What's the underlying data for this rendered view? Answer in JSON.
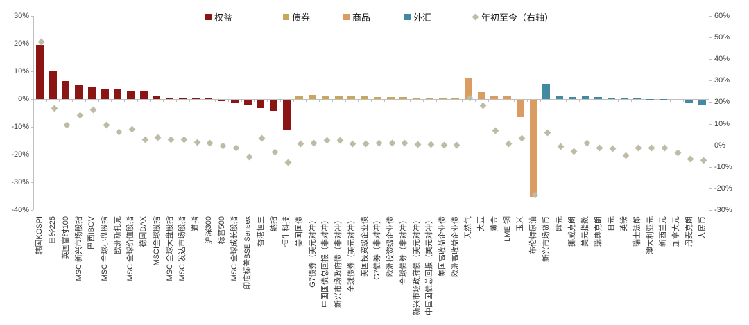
{
  "chart_data": {
    "type": "bar",
    "overlay": "scatter",
    "title": "",
    "legend": [
      {
        "label": "权益",
        "color": "#8B1512",
        "marker": "square"
      },
      {
        "label": "债券",
        "color": "#C8A75C",
        "marker": "square"
      },
      {
        "label": "商品",
        "color": "#DB9C62",
        "marker": "square"
      },
      {
        "label": "外汇",
        "color": "#4489A3",
        "marker": "square"
      },
      {
        "label": "年初至今（右轴）",
        "color": "#BFBCA5",
        "marker": "diamond"
      }
    ],
    "left_axis": {
      "max": 30,
      "min": -40,
      "step": 10,
      "ticks": [
        "30%",
        "20%",
        "10%",
        "0%",
        "-10%",
        "-20%",
        "-30%",
        "-40%"
      ]
    },
    "right_axis": {
      "max": 60,
      "min": -30,
      "step": 10,
      "ticks": [
        "60%",
        "50%",
        "40%",
        "30%",
        "20%",
        "10%",
        "0%",
        "-10%",
        "-20%",
        "-30%"
      ]
    },
    "series_note": "bar = period performance (left axis), diamond = 年初至今 YTD (right axis)",
    "points": [
      {
        "label": "韩国KOSPI",
        "group": "权益",
        "bar": 19.5,
        "ytd": 48.0
      },
      {
        "label": "日经225",
        "group": "权益",
        "bar": 10.2,
        "ytd": 17.0
      },
      {
        "label": "英国富时100",
        "group": "权益",
        "bar": 6.6,
        "ytd": 9.5
      },
      {
        "label": "MSCI新兴市场股指",
        "group": "权益",
        "bar": 5.2,
        "ytd": 14.0
      },
      {
        "label": "巴西IBOV",
        "group": "权益",
        "bar": 4.2,
        "ytd": 16.5
      },
      {
        "label": "MSCI全球小盘股指",
        "group": "权益",
        "bar": 3.7,
        "ytd": 9.5
      },
      {
        "label": "欧洲斯托克",
        "group": "权益",
        "bar": 3.6,
        "ytd": 6.2
      },
      {
        "label": "MSCI全球价值股指",
        "group": "权益",
        "bar": 3.1,
        "ytd": 7.6
      },
      {
        "label": "德国DAX",
        "group": "权益",
        "bar": 2.8,
        "ytd": 2.7
      },
      {
        "label": "MSCI全球股指",
        "group": "权益",
        "bar": 1.0,
        "ytd": 3.6
      },
      {
        "label": "MSCI全球大盘股指",
        "group": "权益",
        "bar": 0.6,
        "ytd": 2.7
      },
      {
        "label": "MSCI发达市场股指",
        "group": "权益",
        "bar": 0.5,
        "ytd": 2.5
      },
      {
        "label": "道指",
        "group": "权益",
        "bar": 0.4,
        "ytd": 1.5
      },
      {
        "label": "沪深300",
        "group": "权益",
        "bar": 0.2,
        "ytd": 1.0
      },
      {
        "label": "标普500",
        "group": "权益",
        "bar": -0.5,
        "ytd": -0.1
      },
      {
        "label": "MSCI全球成长股指",
        "group": "权益",
        "bar": -1.0,
        "ytd": -1.2
      },
      {
        "label": "印度标普BSE Sensex",
        "group": "权益",
        "bar": -1.9,
        "ytd": -5.5
      },
      {
        "label": "香港恒生",
        "group": "权益",
        "bar": -3.1,
        "ytd": 3.3
      },
      {
        "label": "纳指",
        "group": "权益",
        "bar": -4.1,
        "ytd": -3.3
      },
      {
        "label": "恒生科技",
        "group": "权益",
        "bar": -10.8,
        "ytd": -8.0
      },
      {
        "label": "美国国债",
        "group": "债券",
        "bar": 1.2,
        "ytd": 0.8
      },
      {
        "label": "G7债券（美元对冲）",
        "group": "债券",
        "bar": 1.4,
        "ytd": 1.0
      },
      {
        "label": "中国国债总回报（非对冲）",
        "group": "债券",
        "bar": 1.2,
        "ytd": 2.2
      },
      {
        "label": "新兴市场政府债（非对冲）",
        "group": "债券",
        "bar": 1.0,
        "ytd": 2.3
      },
      {
        "label": "全球债券（美元对冲）",
        "group": "债券",
        "bar": 1.2,
        "ytd": 0.8
      },
      {
        "label": "美国投资级企业债",
        "group": "债券",
        "bar": 1.0,
        "ytd": 0.8
      },
      {
        "label": "G7债券（非对冲）",
        "group": "债券",
        "bar": 0.7,
        "ytd": 0.9
      },
      {
        "label": "欧洲投资级企业债",
        "group": "债券",
        "bar": 0.8,
        "ytd": 1.0
      },
      {
        "label": "全球债券（非对冲）",
        "group": "债券",
        "bar": 0.7,
        "ytd": 1.1
      },
      {
        "label": "新兴市场政府债（美元对冲）",
        "group": "债券",
        "bar": 0.4,
        "ytd": 0.3
      },
      {
        "label": "中国国债总回报（美元对冲）",
        "group": "债券",
        "bar": 0.25,
        "ytd": 0.3
      },
      {
        "label": "美国高收益企业债",
        "group": "债券",
        "bar": 0.15,
        "ytd": 0.2
      },
      {
        "label": "欧洲高收益企业债",
        "group": "债券",
        "bar": 0.15,
        "ytd": 0.2
      },
      {
        "label": "天然气",
        "group": "商品",
        "bar": 7.6,
        "ytd": 22.0
      },
      {
        "label": "大豆",
        "group": "商品",
        "bar": 2.4,
        "ytd": 18.5
      },
      {
        "label": "黄金",
        "group": "商品",
        "bar": 1.2,
        "ytd": 6.8
      },
      {
        "label": "LME 铜",
        "group": "商品",
        "bar": 1.3,
        "ytd": 0.8
      },
      {
        "label": "玉米",
        "group": "商品",
        "bar": -6.3,
        "ytd": 3.3
      },
      {
        "label": "布伦特原油",
        "group": "商品",
        "bar": -34.9,
        "ytd": -23.2
      },
      {
        "label": "新兴市场货币",
        "group": "外汇",
        "bar": 5.5,
        "ytd": 6.0
      },
      {
        "label": "欧元",
        "group": "外汇",
        "bar": 1.3,
        "ytd": -0.5
      },
      {
        "label": "挪威克朗",
        "group": "外汇",
        "bar": 0.8,
        "ytd": -2.7
      },
      {
        "label": "美元指数",
        "group": "外汇",
        "bar": 1.2,
        "ytd": 1.1
      },
      {
        "label": "瑞典克朗",
        "group": "外汇",
        "bar": 0.8,
        "ytd": -1.1
      },
      {
        "label": "日元",
        "group": "外汇",
        "bar": 0.5,
        "ytd": -1.4
      },
      {
        "label": "英镑",
        "group": "外汇",
        "bar": 0.2,
        "ytd": -4.9
      },
      {
        "label": "瑞士法郎",
        "group": "外汇",
        "bar": 0.2,
        "ytd": -1.1
      },
      {
        "label": "澳大利亚元",
        "group": "外汇",
        "bar": 0.1,
        "ytd": -1.1
      },
      {
        "label": "新西兰元",
        "group": "外汇",
        "bar": 0.1,
        "ytd": -1.3
      },
      {
        "label": "加拿大元",
        "group": "外汇",
        "bar": -0.3,
        "ytd": -3.6
      },
      {
        "label": "丹麦克朗",
        "group": "外汇",
        "bar": -1.0,
        "ytd": -6.5
      },
      {
        "label": "人民币",
        "group": "外汇",
        "bar": -1.7,
        "ytd": -7.1
      }
    ]
  }
}
